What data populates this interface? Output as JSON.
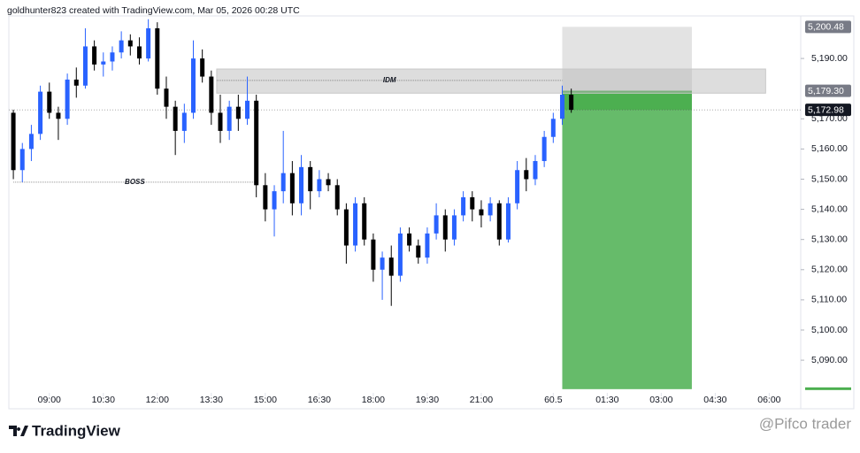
{
  "header": "goldhunter823 created with TradingView.com, Mar 05, 2026 00:28 UTC",
  "chart_data": {
    "type": "candlestick",
    "x": [
      0.5,
      1.5,
      2.5,
      3.5,
      4.5,
      5.5,
      6.5,
      7.5,
      8.5,
      9.5,
      10.5,
      11.5,
      12.5,
      13.5,
      14.5,
      15.5,
      16.5,
      17.5,
      18.5,
      19.5,
      20.5,
      21.5,
      22.5,
      23.5,
      24.5,
      25.5,
      26.5,
      27.5,
      28.5,
      29.5,
      30.5,
      31.5,
      32.5,
      33.5,
      34.5,
      35.5,
      36.5,
      37.5,
      38.5,
      39.5,
      40.5,
      41.5,
      42.5,
      43.5,
      44.5,
      45.5,
      46.5,
      47.5,
      48.5,
      49.5,
      50.5,
      51.5,
      52.5,
      53.5,
      54.5,
      55.5,
      56.5,
      57.5,
      58.5,
      59.5,
      60.5,
      61.5,
      62.5
    ],
    "open": [
      5172,
      5153,
      5160,
      5165,
      5179,
      5172,
      5170,
      5183,
      5181,
      5194,
      5188,
      5189,
      5192,
      5196,
      5194,
      5190,
      5200,
      5180,
      5174,
      5166,
      5172,
      5190,
      5184,
      5172,
      5166,
      5174,
      5170,
      5176,
      5148,
      5140,
      5146,
      5152,
      5142,
      5154,
      5146,
      5150,
      5148,
      5140,
      5128,
      5142,
      5130,
      5120,
      5124,
      5118,
      5132,
      5128,
      5124,
      5132,
      5138,
      5130,
      5138,
      5144,
      5140,
      5138,
      5142,
      5130,
      5142,
      5153,
      5150,
      5156,
      5164,
      5170,
      5178
    ],
    "high": [
      5173,
      5162,
      5168,
      5181,
      5182,
      5174,
      5185,
      5187,
      5200,
      5196,
      5192,
      5194,
      5199,
      5198,
      5197,
      5203,
      5202,
      5184,
      5176,
      5175,
      5196,
      5193,
      5186,
      5178,
      5176,
      5178,
      5184,
      5178,
      5152,
      5148,
      5166,
      5156,
      5158,
      5156,
      5153,
      5152,
      5150,
      5142,
      5144,
      5144,
      5132,
      5126,
      5128,
      5134,
      5134,
      5130,
      5134,
      5142,
      5140,
      5140,
      5146,
      5146,
      5143,
      5144,
      5143,
      5144,
      5156,
      5157,
      5158,
      5166,
      5172,
      5181,
      5180
    ],
    "low": [
      5150,
      5149,
      5156,
      5163,
      5170,
      5163,
      5168,
      5177,
      5180,
      5186,
      5184,
      5186,
      5190,
      5191,
      5188,
      5189,
      5178,
      5170,
      5158,
      5162,
      5170,
      5182,
      5168,
      5162,
      5163,
      5166,
      5168,
      5144,
      5136,
      5131,
      5142,
      5138,
      5138,
      5140,
      5144,
      5146,
      5138,
      5122,
      5126,
      5128,
      5116,
      5110,
      5108,
      5116,
      5126,
      5122,
      5122,
      5130,
      5126,
      5128,
      5136,
      5136,
      5134,
      5136,
      5128,
      5129,
      5140,
      5146,
      5148,
      5154,
      5162,
      5168,
      5172
    ],
    "close": [
      5153,
      5160,
      5165,
      5179,
      5172,
      5170,
      5183,
      5181,
      5194,
      5188,
      5189,
      5192,
      5196,
      5194,
      5190,
      5200,
      5180,
      5174,
      5166,
      5172,
      5190,
      5184,
      5172,
      5166,
      5174,
      5170,
      5176,
      5148,
      5140,
      5146,
      5152,
      5142,
      5154,
      5146,
      5150,
      5148,
      5140,
      5128,
      5142,
      5130,
      5120,
      5124,
      5118,
      5132,
      5128,
      5124,
      5132,
      5138,
      5130,
      5138,
      5144,
      5140,
      5138,
      5142,
      5130,
      5142,
      5153,
      5150,
      5156,
      5164,
      5170,
      5178,
      5172.98
    ],
    "up_color": "#2962ff",
    "down_color": "#000000",
    "xlim": [
      0,
      88
    ],
    "xticks": [
      {
        "value": 4.5,
        "label": "09:00"
      },
      {
        "value": 10.5,
        "label": "10:30"
      },
      {
        "value": 16.5,
        "label": "12:00"
      },
      {
        "value": 22.5,
        "label": "13:30"
      },
      {
        "value": 28.5,
        "label": "15:00"
      },
      {
        "value": 34.5,
        "label": "16:30"
      },
      {
        "value": 40.5,
        "label": "18:00"
      },
      {
        "value": 46.5,
        "label": "19:30"
      },
      {
        "value": 52.5,
        "label": "21:00"
      },
      60.5,
      {
        "value": 66.5,
        "label": "01:30"
      },
      {
        "value": 72.5,
        "label": "03:00"
      },
      {
        "value": 78.5,
        "label": "04:30"
      },
      {
        "value": 84.5,
        "label": "06:00"
      }
    ],
    "ylim": [
      5073.9,
      5204.1
    ],
    "yticks": [
      {
        "value": 5090,
        "label": "5,090.00"
      },
      {
        "value": 5100,
        "label": "5,100.00"
      },
      {
        "value": 5110,
        "label": "5,110.00"
      },
      {
        "value": 5120,
        "label": "5,120.00"
      },
      {
        "value": 5130,
        "label": "5,130.00"
      },
      {
        "value": 5140,
        "label": "5,140.00"
      },
      {
        "value": 5150,
        "label": "5,150.00"
      },
      {
        "value": 5160,
        "label": "5,160.00"
      },
      {
        "value": 5170,
        "label": "5,170.00"
      },
      {
        "value": 5190,
        "label": "5,190.00"
      }
    ],
    "boss": {
      "label": "BOSS",
      "price": 5149,
      "x_start": 0.5,
      "x_end": 27.5
    },
    "idm": {
      "label": "IDM",
      "price": 5182.7,
      "zone_top": 5186.5,
      "zone_bottom": 5178.5,
      "x_start": 23.1,
      "x_end": 84.1
    },
    "position": {
      "x_start": 61.5,
      "x_end": 75.9,
      "stop": {
        "value": 5200.48,
        "label": "5,200.48"
      },
      "entry": {
        "value": 5179.3,
        "label": "5,179.30"
      },
      "target": 5080.4
    },
    "last_price": {
      "value": 5172.98,
      "label": "5,172.98"
    }
  },
  "footer": {
    "logo": "TradingView",
    "watermark": "@Pifco trader"
  }
}
